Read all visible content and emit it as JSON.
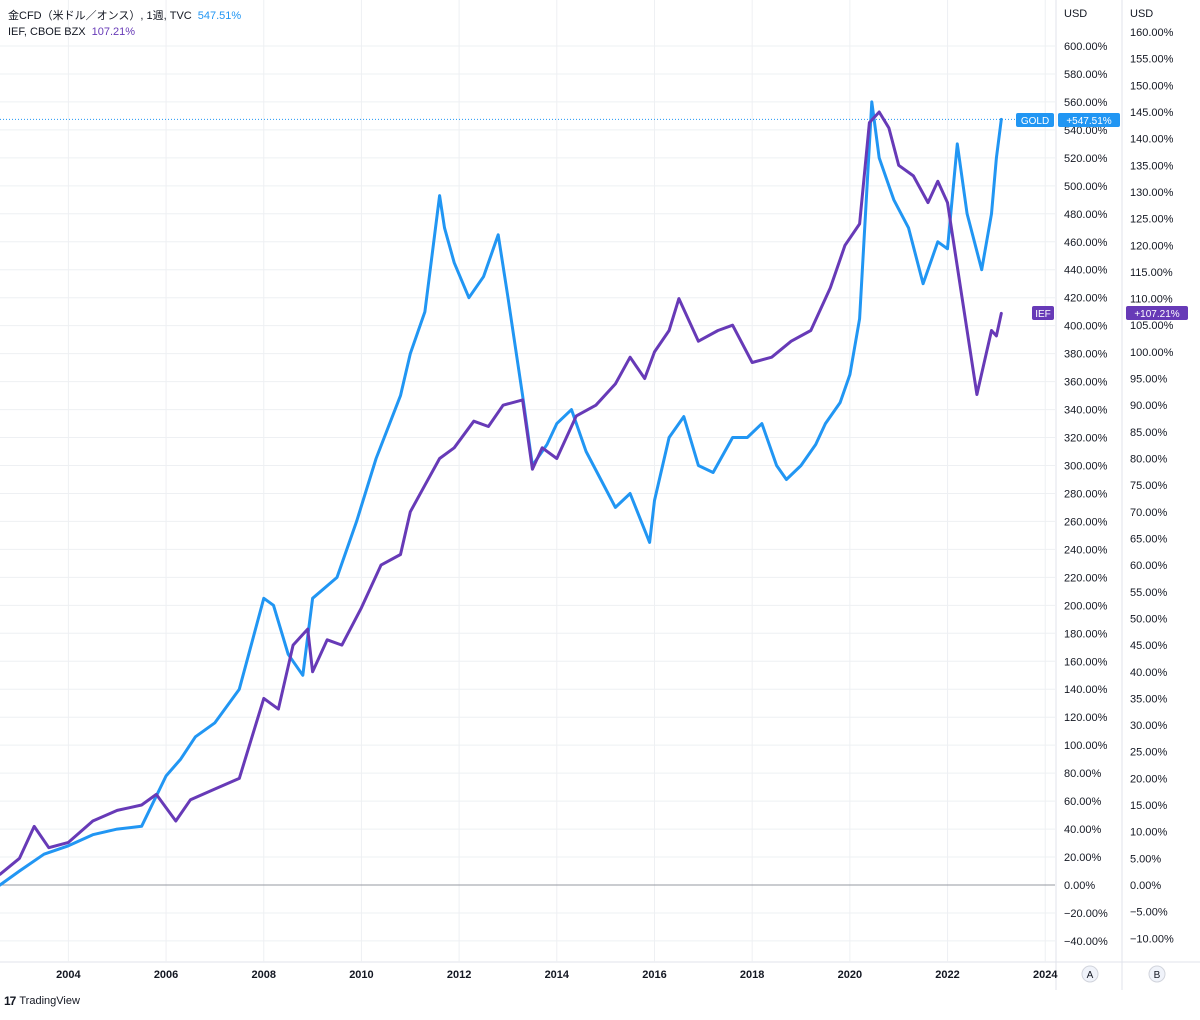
{
  "legend": {
    "row1": {
      "name": "金CFD（米ドル／オンス）, 1週, TVC",
      "value": "547.51%",
      "color": "#2196f3"
    },
    "row2": {
      "name": "IEF, CBOE BZX",
      "value": "107.21%",
      "color": "#673ab7"
    }
  },
  "axes": {
    "left_unit": "USD",
    "right_unit": "USD",
    "scale_a": "A",
    "scale_b": "B",
    "left_ticks": [
      "600.00%",
      "580.00%",
      "560.00%",
      "540.00%",
      "520.00%",
      "500.00%",
      "480.00%",
      "460.00%",
      "440.00%",
      "420.00%",
      "400.00%",
      "380.00%",
      "360.00%",
      "340.00%",
      "320.00%",
      "300.00%",
      "280.00%",
      "260.00%",
      "240.00%",
      "220.00%",
      "200.00%",
      "180.00%",
      "160.00%",
      "140.00%",
      "120.00%",
      "100.00%",
      "80.00%",
      "60.00%",
      "40.00%",
      "20.00%",
      "0.00%",
      "−20.00%",
      "−40.00%"
    ],
    "right_ticks": [
      "160.00%",
      "155.00%",
      "150.00%",
      "145.00%",
      "140.00%",
      "135.00%",
      "130.00%",
      "125.00%",
      "120.00%",
      "115.00%",
      "110.00%",
      "105.00%",
      "100.00%",
      "95.00%",
      "90.00%",
      "85.00%",
      "80.00%",
      "75.00%",
      "70.00%",
      "65.00%",
      "60.00%",
      "55.00%",
      "50.00%",
      "45.00%",
      "40.00%",
      "35.00%",
      "30.00%",
      "25.00%",
      "20.00%",
      "15.00%",
      "10.00%",
      "5.00%",
      "0.00%",
      "−5.00%",
      "−10.00%"
    ],
    "x_ticks": [
      "2004",
      "2006",
      "2008",
      "2010",
      "2012",
      "2014",
      "2016",
      "2018",
      "2020",
      "2022",
      "2024"
    ]
  },
  "badges": {
    "gold_label": "GOLD",
    "gold_value": "+547.51%",
    "ief_label": "IEF",
    "ief_value": "+107.21%"
  },
  "footer": {
    "logo": "17",
    "brand": "TradingView"
  },
  "colors": {
    "gold": "#2196f3",
    "ief": "#673ab7",
    "grid": "#eef0f3",
    "zero": "#9598a1"
  },
  "chart_data": {
    "type": "line",
    "x_range": [
      2002.6,
      2024.2
    ],
    "series": [
      {
        "name": "金CFD（米ドル／オンス）, 1週, TVC",
        "axis": "left",
        "ylim": [
          -45,
          615
        ],
        "x": [
          2002.6,
          2003.0,
          2003.5,
          2004.0,
          2004.5,
          2005.0,
          2005.5,
          2006.0,
          2006.3,
          2006.6,
          2007.0,
          2007.5,
          2008.0,
          2008.2,
          2008.5,
          2008.8,
          2009.0,
          2009.5,
          2009.9,
          2010.3,
          2010.8,
          2011.0,
          2011.3,
          2011.6,
          2011.7,
          2011.9,
          2012.2,
          2012.5,
          2012.8,
          2013.0,
          2013.3,
          2013.5,
          2013.8,
          2014.0,
          2014.3,
          2014.6,
          2014.9,
          2015.2,
          2015.5,
          2015.9,
          2016.0,
          2016.3,
          2016.6,
          2016.9,
          2017.2,
          2017.6,
          2017.9,
          2018.2,
          2018.5,
          2018.7,
          2019.0,
          2019.3,
          2019.5,
          2019.8,
          2020.0,
          2020.2,
          2020.45,
          2020.6,
          2020.9,
          2021.2,
          2021.5,
          2021.8,
          2022.0,
          2022.2,
          2022.4,
          2022.7,
          2022.9,
          2023.0,
          2023.1
        ],
        "y": [
          0,
          10,
          22,
          28,
          36,
          40,
          42,
          78,
          90,
          106,
          116,
          140,
          205,
          200,
          165,
          150,
          205,
          220,
          260,
          305,
          350,
          380,
          410,
          493,
          470,
          445,
          420,
          435,
          465,
          420,
          350,
          300,
          315,
          330,
          340,
          310,
          290,
          270,
          280,
          245,
          275,
          320,
          335,
          300,
          295,
          320,
          320,
          330,
          300,
          290,
          300,
          315,
          330,
          345,
          365,
          405,
          560,
          520,
          490,
          470,
          430,
          460,
          455,
          530,
          480,
          440,
          480,
          520,
          547.51
        ]
      },
      {
        "name": "IEF, CBOE BZX",
        "axis": "right",
        "ylim": [
          -12,
          163
        ],
        "x": [
          2002.6,
          2003.0,
          2003.3,
          2003.6,
          2004.0,
          2004.5,
          2005.0,
          2005.5,
          2005.8,
          2006.2,
          2006.5,
          2007.0,
          2007.5,
          2008.0,
          2008.3,
          2008.6,
          2008.9,
          2009.0,
          2009.3,
          2009.6,
          2010.0,
          2010.4,
          2010.8,
          2011.0,
          2011.3,
          2011.6,
          2011.9,
          2012.3,
          2012.6,
          2012.9,
          2013.3,
          2013.5,
          2013.7,
          2014.0,
          2014.4,
          2014.8,
          2015.2,
          2015.5,
          2015.8,
          2016.0,
          2016.3,
          2016.5,
          2016.9,
          2017.3,
          2017.6,
          2018.0,
          2018.4,
          2018.8,
          2019.2,
          2019.6,
          2019.9,
          2020.2,
          2020.4,
          2020.6,
          2020.8,
          2021.0,
          2021.3,
          2021.6,
          2021.8,
          2022.0,
          2022.3,
          2022.6,
          2022.8,
          2022.9,
          2023.0,
          2023.1
        ],
        "y": [
          2,
          5,
          11,
          7,
          8,
          12,
          14,
          15,
          17,
          12,
          16,
          18,
          20,
          35,
          33,
          45,
          48,
          40,
          46,
          45,
          52,
          60,
          62,
          70,
          75,
          80,
          82,
          87,
          86,
          90,
          91,
          78,
          82,
          80,
          88,
          90,
          94,
          99,
          95,
          100,
          104,
          110,
          102,
          104,
          105,
          98,
          99,
          102,
          104,
          112,
          120,
          124,
          143,
          145,
          142,
          135,
          133,
          128,
          132,
          128,
          110,
          92,
          100,
          104,
          103,
          107.21
        ]
      }
    ]
  }
}
